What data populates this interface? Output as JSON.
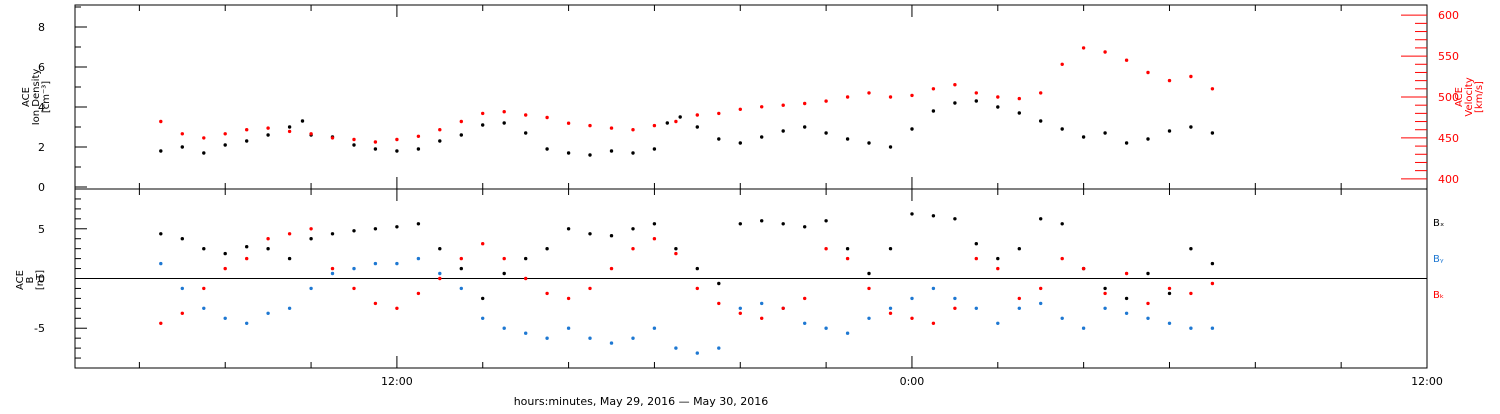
{
  "chart_data": [
    {
      "type": "scatter",
      "panel": "plasma",
      "ylabel_left": [
        "ACE",
        "Ion Density",
        "[cm⁻³]"
      ],
      "ylabel_right": [
        "ACE",
        "Velocity",
        "[km/s]"
      ],
      "ylim_left": [
        0,
        9
      ],
      "yticks_left": [
        0,
        2,
        4,
        6,
        8
      ],
      "ylim_right": [
        390,
        610
      ],
      "yticks_right": [
        400,
        450,
        500,
        550,
        600
      ],
      "series": [
        {
          "axis": "left",
          "color": "#000000",
          "points": [
            [
              6.5,
              1.8
            ],
            [
              7.0,
              2.0
            ],
            [
              7.5,
              1.7
            ],
            [
              8.0,
              2.1
            ],
            [
              8.5,
              2.3
            ],
            [
              9.0,
              2.6
            ],
            [
              9.5,
              3.0
            ],
            [
              9.8,
              3.3
            ],
            [
              10.0,
              2.6
            ],
            [
              10.5,
              2.5
            ],
            [
              11.0,
              2.1
            ],
            [
              11.5,
              1.9
            ],
            [
              12.0,
              1.8
            ],
            [
              12.5,
              1.9
            ],
            [
              13.0,
              2.3
            ],
            [
              13.5,
              2.6
            ],
            [
              14.0,
              3.1
            ],
            [
              14.5,
              3.2
            ],
            [
              15.0,
              2.7
            ],
            [
              15.5,
              1.9
            ],
            [
              16.0,
              1.7
            ],
            [
              16.5,
              1.6
            ],
            [
              17.0,
              1.8
            ],
            [
              17.5,
              1.7
            ],
            [
              18.0,
              1.9
            ],
            [
              18.3,
              3.2
            ],
            [
              18.6,
              3.5
            ],
            [
              19.0,
              3.0
            ],
            [
              19.5,
              2.4
            ],
            [
              20.0,
              2.2
            ],
            [
              20.5,
              2.5
            ],
            [
              21.0,
              2.8
            ],
            [
              21.5,
              3.0
            ],
            [
              22.0,
              2.7
            ],
            [
              22.5,
              2.4
            ],
            [
              23.0,
              2.2
            ],
            [
              23.5,
              2.0
            ],
            [
              24.0,
              2.9
            ],
            [
              24.5,
              3.8
            ],
            [
              25.0,
              4.2
            ],
            [
              25.5,
              4.3
            ],
            [
              26.0,
              4.0
            ],
            [
              26.5,
              3.7
            ],
            [
              27.0,
              3.3
            ],
            [
              27.5,
              2.9
            ],
            [
              28.0,
              2.5
            ],
            [
              28.5,
              2.7
            ],
            [
              29.0,
              2.2
            ],
            [
              29.5,
              2.4
            ],
            [
              30.0,
              2.8
            ],
            [
              30.5,
              3.0
            ],
            [
              31.0,
              2.7
            ]
          ]
        },
        {
          "axis": "right",
          "color": "#ff0000",
          "points": [
            [
              6.5,
              470
            ],
            [
              7.0,
              455
            ],
            [
              7.5,
              450
            ],
            [
              8.0,
              455
            ],
            [
              8.5,
              460
            ],
            [
              9.0,
              462
            ],
            [
              9.5,
              458
            ],
            [
              10.0,
              455
            ],
            [
              10.5,
              450
            ],
            [
              11.0,
              448
            ],
            [
              11.5,
              445
            ],
            [
              12.0,
              448
            ],
            [
              12.5,
              452
            ],
            [
              13.0,
              460
            ],
            [
              13.5,
              470
            ],
            [
              14.0,
              480
            ],
            [
              14.5,
              482
            ],
            [
              15.0,
              478
            ],
            [
              15.5,
              475
            ],
            [
              16.0,
              468
            ],
            [
              16.5,
              465
            ],
            [
              17.0,
              462
            ],
            [
              17.5,
              460
            ],
            [
              18.0,
              465
            ],
            [
              18.5,
              470
            ],
            [
              19.0,
              478
            ],
            [
              19.5,
              480
            ],
            [
              20.0,
              485
            ],
            [
              20.5,
              488
            ],
            [
              21.0,
              490
            ],
            [
              21.5,
              492
            ],
            [
              22.0,
              495
            ],
            [
              22.5,
              500
            ],
            [
              23.0,
              505
            ],
            [
              23.5,
              500
            ],
            [
              24.0,
              502
            ],
            [
              24.5,
              510
            ],
            [
              25.0,
              515
            ],
            [
              25.5,
              505
            ],
            [
              26.0,
              500
            ],
            [
              26.5,
              498
            ],
            [
              27.0,
              505
            ],
            [
              27.5,
              540
            ],
            [
              28.0,
              560
            ],
            [
              28.5,
              555
            ],
            [
              29.0,
              545
            ],
            [
              29.5,
              530
            ],
            [
              30.0,
              520
            ],
            [
              30.5,
              525
            ],
            [
              31.0,
              510
            ]
          ]
        }
      ]
    },
    {
      "type": "scatter",
      "panel": "magnetic",
      "ylabel_left": [
        "ACE",
        "B",
        "[nT]"
      ],
      "ylim": [
        -9,
        9
      ],
      "yticks": [
        -5,
        0,
        5
      ],
      "zero_line": true,
      "legend": [
        "Bₓ",
        "Bᵧ",
        "Bₖ"
      ],
      "legend_position": "right",
      "series": [
        {
          "label": "Bₓ",
          "color": "#000000",
          "points": [
            [
              6.5,
              4.5
            ],
            [
              7.0,
              4.0
            ],
            [
              7.5,
              3.0
            ],
            [
              8.0,
              2.5
            ],
            [
              8.5,
              3.2
            ],
            [
              9.0,
              3.0
            ],
            [
              9.5,
              2.0
            ],
            [
              10.0,
              4.0
            ],
            [
              10.5,
              4.5
            ],
            [
              11.0,
              4.8
            ],
            [
              11.5,
              5.0
            ],
            [
              12.0,
              5.2
            ],
            [
              12.5,
              5.5
            ],
            [
              13.0,
              3.0
            ],
            [
              13.5,
              1.0
            ],
            [
              14.0,
              -2.0
            ],
            [
              14.5,
              0.5
            ],
            [
              15.0,
              2.0
            ],
            [
              15.5,
              3.0
            ],
            [
              16.0,
              5.0
            ],
            [
              16.5,
              4.5
            ],
            [
              17.0,
              4.3
            ],
            [
              17.5,
              5.0
            ],
            [
              18.0,
              5.5
            ],
            [
              18.5,
              3.0
            ],
            [
              19.0,
              1.0
            ],
            [
              19.5,
              -0.5
            ],
            [
              20.0,
              5.5
            ],
            [
              20.5,
              5.8
            ],
            [
              21.0,
              5.5
            ],
            [
              21.5,
              5.2
            ],
            [
              22.0,
              5.8
            ],
            [
              22.5,
              3.0
            ],
            [
              23.0,
              0.5
            ],
            [
              23.5,
              3.0
            ],
            [
              24.0,
              6.5
            ],
            [
              24.5,
              6.3
            ],
            [
              25.0,
              6.0
            ],
            [
              25.5,
              3.5
            ],
            [
              26.0,
              2.0
            ],
            [
              26.5,
              3.0
            ],
            [
              27.0,
              6.0
            ],
            [
              27.5,
              5.5
            ],
            [
              28.0,
              1.0
            ],
            [
              28.5,
              -1.0
            ],
            [
              29.0,
              -2.0
            ],
            [
              29.5,
              0.5
            ],
            [
              30.0,
              -1.5
            ],
            [
              30.5,
              3.0
            ],
            [
              31.0,
              1.5
            ]
          ]
        },
        {
          "label": "Bᵧ",
          "color": "#1e78d2",
          "points": [
            [
              6.5,
              1.5
            ],
            [
              7.0,
              -1.0
            ],
            [
              7.5,
              -3.0
            ],
            [
              8.0,
              -4.0
            ],
            [
              8.5,
              -4.5
            ],
            [
              9.0,
              -3.5
            ],
            [
              9.5,
              -3.0
            ],
            [
              10.0,
              -1.0
            ],
            [
              10.5,
              0.5
            ],
            [
              11.0,
              1.0
            ],
            [
              11.5,
              1.5
            ],
            [
              12.0,
              1.5
            ],
            [
              12.5,
              2.0
            ],
            [
              13.0,
              0.5
            ],
            [
              13.5,
              -1.0
            ],
            [
              14.0,
              -4.0
            ],
            [
              14.5,
              -5.0
            ],
            [
              15.0,
              -5.5
            ],
            [
              15.5,
              -6.0
            ],
            [
              16.0,
              -5.0
            ],
            [
              16.5,
              -6.0
            ],
            [
              17.0,
              -6.5
            ],
            [
              17.5,
              -6.0
            ],
            [
              18.0,
              -5.0
            ],
            [
              18.5,
              -7.0
            ],
            [
              19.0,
              -7.5
            ],
            [
              19.5,
              -7.0
            ],
            [
              20.0,
              -3.0
            ],
            [
              20.5,
              -2.5
            ],
            [
              21.0,
              -3.0
            ],
            [
              21.5,
              -4.5
            ],
            [
              22.0,
              -5.0
            ],
            [
              22.5,
              -5.5
            ],
            [
              23.0,
              -4.0
            ],
            [
              23.5,
              -3.0
            ],
            [
              24.0,
              -2.0
            ],
            [
              24.5,
              -1.0
            ],
            [
              25.0,
              -2.0
            ],
            [
              25.5,
              -3.0
            ],
            [
              26.0,
              -4.5
            ],
            [
              26.5,
              -3.0
            ],
            [
              27.0,
              -2.5
            ],
            [
              27.5,
              -4.0
            ],
            [
              28.0,
              -5.0
            ],
            [
              28.5,
              -3.0
            ],
            [
              29.0,
              -3.5
            ],
            [
              29.5,
              -4.0
            ],
            [
              30.0,
              -4.5
            ],
            [
              30.5,
              -5.0
            ],
            [
              31.0,
              -5.0
            ]
          ]
        },
        {
          "label": "Bₖ",
          "color": "#ff0000",
          "points": [
            [
              6.5,
              -4.5
            ],
            [
              7.0,
              -3.5
            ],
            [
              7.5,
              -1.0
            ],
            [
              8.0,
              1.0
            ],
            [
              8.5,
              2.0
            ],
            [
              9.0,
              4.0
            ],
            [
              9.5,
              4.5
            ],
            [
              10.0,
              5.0
            ],
            [
              10.5,
              1.0
            ],
            [
              11.0,
              -1.0
            ],
            [
              11.5,
              -2.5
            ],
            [
              12.0,
              -3.0
            ],
            [
              12.5,
              -1.5
            ],
            [
              13.0,
              0.0
            ],
            [
              13.5,
              2.0
            ],
            [
              14.0,
              3.5
            ],
            [
              14.5,
              2.0
            ],
            [
              15.0,
              0.0
            ],
            [
              15.5,
              -1.5
            ],
            [
              16.0,
              -2.0
            ],
            [
              16.5,
              -1.0
            ],
            [
              17.0,
              1.0
            ],
            [
              17.5,
              3.0
            ],
            [
              18.0,
              4.0
            ],
            [
              18.5,
              2.5
            ],
            [
              19.0,
              -1.0
            ],
            [
              19.5,
              -2.5
            ],
            [
              20.0,
              -3.5
            ],
            [
              20.5,
              -4.0
            ],
            [
              21.0,
              -3.0
            ],
            [
              21.5,
              -2.0
            ],
            [
              22.0,
              3.0
            ],
            [
              22.5,
              2.0
            ],
            [
              23.0,
              -1.0
            ],
            [
              23.5,
              -3.5
            ],
            [
              24.0,
              -4.0
            ],
            [
              24.5,
              -4.5
            ],
            [
              25.0,
              -3.0
            ],
            [
              25.5,
              2.0
            ],
            [
              26.0,
              1.0
            ],
            [
              26.5,
              -2.0
            ],
            [
              27.0,
              -1.0
            ],
            [
              27.5,
              2.0
            ],
            [
              28.0,
              1.0
            ],
            [
              28.5,
              -1.5
            ],
            [
              29.0,
              0.5
            ],
            [
              29.5,
              -2.5
            ],
            [
              30.0,
              -1.0
            ],
            [
              30.5,
              -1.5
            ],
            [
              31.0,
              -0.5
            ]
          ]
        }
      ]
    }
  ],
  "x_axis": {
    "range_hours": [
      4.5,
      36.0
    ],
    "tick_labels": [
      {
        "hour": 12,
        "label": "12:00"
      },
      {
        "hour": 24,
        "label": "0:00"
      },
      {
        "hour": 36,
        "label": "12:00"
      }
    ],
    "xlabel": "hours:minutes, May 29, 2016 — May 30, 2016"
  },
  "colors": {
    "black": "#000000",
    "red": "#ff0000",
    "blue": "#1e78d2"
  }
}
